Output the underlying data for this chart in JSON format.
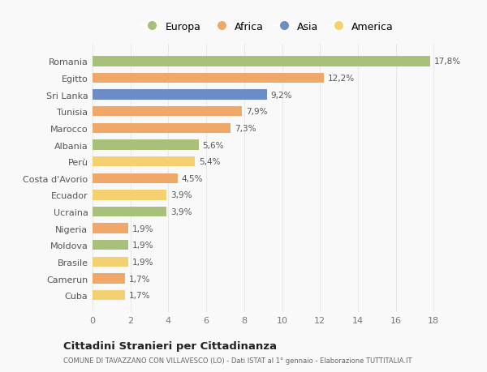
{
  "categories": [
    "Romania",
    "Egitto",
    "Sri Lanka",
    "Tunisia",
    "Marocco",
    "Albania",
    "Perù",
    "Costa d'Avorio",
    "Ecuador",
    "Ucraina",
    "Nigeria",
    "Moldova",
    "Brasile",
    "Camerun",
    "Cuba"
  ],
  "values": [
    17.8,
    12.2,
    9.2,
    7.9,
    7.3,
    5.6,
    5.4,
    4.5,
    3.9,
    3.9,
    1.9,
    1.9,
    1.9,
    1.7,
    1.7
  ],
  "labels": [
    "17,8%",
    "12,2%",
    "9,2%",
    "7,9%",
    "7,3%",
    "5,6%",
    "5,4%",
    "4,5%",
    "3,9%",
    "3,9%",
    "1,9%",
    "1,9%",
    "1,9%",
    "1,7%",
    "1,7%"
  ],
  "colors": [
    "#a8c07a",
    "#f0a868",
    "#6b8cc7",
    "#f0a868",
    "#f0a868",
    "#a8c07a",
    "#f5d070",
    "#f0a868",
    "#f5d070",
    "#a8c07a",
    "#f0a868",
    "#a8c07a",
    "#f5d070",
    "#f0a868",
    "#f5d070"
  ],
  "legend_labels": [
    "Europa",
    "Africa",
    "Asia",
    "America"
  ],
  "legend_colors": [
    "#a8c07a",
    "#f0a868",
    "#6b8cc7",
    "#f5d070"
  ],
  "xlim": [
    0,
    18.5
  ],
  "xticks": [
    0,
    2,
    4,
    6,
    8,
    10,
    12,
    14,
    16,
    18
  ],
  "title": "Cittadini Stranieri per Cittadinanza",
  "subtitle": "COMUNE DI TAVAZZANO CON VILLAVESCO (LO) - Dati ISTAT al 1° gennaio - Elaborazione TUTTITALIA.IT",
  "background_color": "#f9f9f9",
  "grid_color": "#e8e8e8",
  "bar_height": 0.6
}
